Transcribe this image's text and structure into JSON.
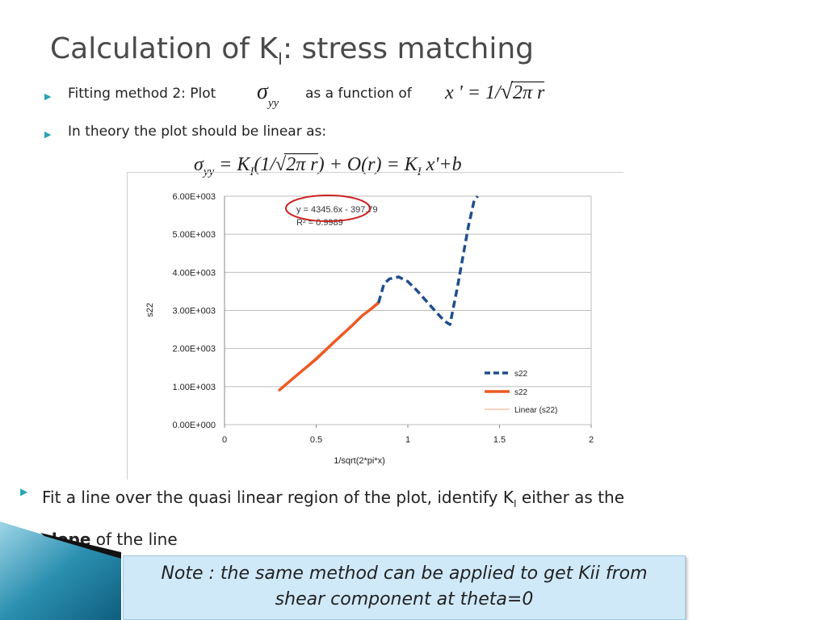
{
  "slide": {
    "title_main": "Calculation of K",
    "title_sub": "I",
    "title_rest": ": stress matching"
  },
  "bullets": {
    "b1_text1": "Fitting method 2: Plot",
    "b1_text2": "as a function of",
    "b1_sigma": "σ",
    "b1_sigma_sub": "yy",
    "b1_xprime": "x ' = 1/",
    "b1_sqrt": "2π r",
    "b2_text": "In theory the plot should be linear as:",
    "eq_left": "σ",
    "eq_left_sub": "yy",
    "eq_mid1": "= K",
    "eq_mid1_sub": "I",
    "eq_mid2": "(1/",
    "eq_sqrt": "2π r",
    "eq_mid3": ") + O(r) = K",
    "eq_mid3_sub": "I",
    "eq_end": "x'+b",
    "b3_text1": "Fit a line over the quasi linear region of the plot, identify K",
    "b3_sub": "I",
    "b3_text2": " either as the",
    "b3_bold": "slope",
    "b3_text3": " of the line"
  },
  "note": {
    "line1": "Note : the same method can be applied to get Kii from",
    "line2": "shear component at theta=0"
  },
  "colors": {
    "accent": "#2aa3b8",
    "series_dashed": "#1f4e8c",
    "series_solid": "#ec5a24",
    "linear_fit": "#f4a582",
    "highlight_circle": "#cc2222",
    "note_bg": "#cfe9f9"
  },
  "chart_data": {
    "type": "line",
    "xlabel": "1/sqrt(2*pi*x)",
    "ylabel": "s22",
    "xlim": [
      0,
      2
    ],
    "ylim": [
      0,
      6000
    ],
    "x_ticks": [
      "0",
      "0.5",
      "1",
      "1.5",
      "2"
    ],
    "y_ticks": [
      "0.00E+000",
      "1.00E+003",
      "2.00E+003",
      "3.00E+003",
      "4.00E+003",
      "5.00E+003",
      "6.00E+003"
    ],
    "grid": true,
    "legend_position": "bottom-right",
    "trendline_equation": "y = 4345.6x - 397.79",
    "r_squared": "R² = 0.9989",
    "series": [
      {
        "name": "s22",
        "style": "dashed",
        "x": [
          0.84,
          0.87,
          0.9,
          0.95,
          1.0,
          1.05,
          1.1,
          1.15,
          1.2,
          1.23,
          1.27,
          1.3,
          1.33,
          1.36,
          1.38
        ],
        "y": [
          3200,
          3700,
          3830,
          3880,
          3760,
          3520,
          3250,
          2980,
          2720,
          2630,
          3600,
          4400,
          5200,
          5850,
          6000
        ]
      },
      {
        "name": "s22",
        "style": "solid",
        "x": [
          0.3,
          0.4,
          0.5,
          0.6,
          0.7,
          0.75,
          0.8,
          0.84
        ],
        "y": [
          910,
          1320,
          1720,
          2180,
          2620,
          2860,
          3040,
          3200
        ]
      },
      {
        "name": "Linear (s22)",
        "style": "thin",
        "x": [
          0.3,
          0.84
        ],
        "y": [
          906,
          3252
        ]
      }
    ]
  }
}
